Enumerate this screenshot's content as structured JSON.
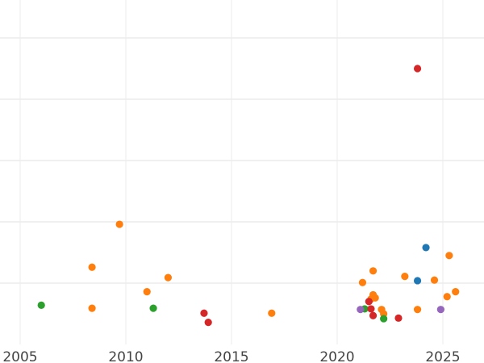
{
  "chart_data": {
    "type": "scatter",
    "title": "",
    "xlabel": "",
    "ylabel": "",
    "xlim": [
      2004.0,
      2027.0
    ],
    "ylim": [
      0,
      5.6
    ],
    "x_ticks": [
      "2005",
      "2010",
      "2015",
      "2020",
      "2025"
    ],
    "x_tick_values": [
      2005,
      2010,
      2015,
      2020,
      2025
    ],
    "y_gridlines": [
      1,
      2,
      3,
      4,
      5
    ],
    "y_tick_labels_shown": false,
    "grid": true,
    "legend": "none",
    "colors": {
      "blue": "#1f77b4",
      "orange": "#ff7f0e",
      "green": "#2ca02c",
      "red": "#d62728",
      "purple": "#9467bd"
    },
    "points": [
      {
        "x": 2023.8,
        "y": 4.5,
        "color": "red"
      },
      {
        "x": 2009.7,
        "y": 1.96,
        "color": "orange"
      },
      {
        "x": 2008.4,
        "y": 1.26,
        "color": "orange"
      },
      {
        "x": 2012.0,
        "y": 1.09,
        "color": "orange"
      },
      {
        "x": 2011.0,
        "y": 0.86,
        "color": "orange"
      },
      {
        "x": 2008.4,
        "y": 0.59,
        "color": "orange"
      },
      {
        "x": 2006.0,
        "y": 0.64,
        "color": "green"
      },
      {
        "x": 2011.3,
        "y": 0.59,
        "color": "green"
      },
      {
        "x": 2013.7,
        "y": 0.51,
        "color": "red"
      },
      {
        "x": 2013.9,
        "y": 0.36,
        "color": "red"
      },
      {
        "x": 2016.9,
        "y": 0.51,
        "color": "orange"
      },
      {
        "x": 2024.2,
        "y": 1.58,
        "color": "blue"
      },
      {
        "x": 2025.3,
        "y": 1.45,
        "color": "orange"
      },
      {
        "x": 2021.7,
        "y": 1.2,
        "color": "orange"
      },
      {
        "x": 2023.2,
        "y": 1.11,
        "color": "orange"
      },
      {
        "x": 2023.8,
        "y": 1.04,
        "color": "blue"
      },
      {
        "x": 2024.6,
        "y": 1.05,
        "color": "orange"
      },
      {
        "x": 2021.2,
        "y": 1.01,
        "color": "orange"
      },
      {
        "x": 2025.6,
        "y": 0.86,
        "color": "orange"
      },
      {
        "x": 2025.2,
        "y": 0.78,
        "color": "orange"
      },
      {
        "x": 2021.7,
        "y": 0.81,
        "color": "orange"
      },
      {
        "x": 2021.8,
        "y": 0.76,
        "color": "orange"
      },
      {
        "x": 2021.6,
        "y": 0.74,
        "color": "orange"
      },
      {
        "x": 2021.5,
        "y": 0.7,
        "color": "red"
      },
      {
        "x": 2021.3,
        "y": 0.58,
        "color": "green"
      },
      {
        "x": 2021.1,
        "y": 0.57,
        "color": "purple"
      },
      {
        "x": 2021.6,
        "y": 0.58,
        "color": "red"
      },
      {
        "x": 2021.7,
        "y": 0.47,
        "color": "red"
      },
      {
        "x": 2022.1,
        "y": 0.57,
        "color": "orange"
      },
      {
        "x": 2022.2,
        "y": 0.5,
        "color": "orange"
      },
      {
        "x": 2022.2,
        "y": 0.42,
        "color": "green"
      },
      {
        "x": 2022.9,
        "y": 0.43,
        "color": "red"
      },
      {
        "x": 2023.8,
        "y": 0.57,
        "color": "orange"
      },
      {
        "x": 2024.9,
        "y": 0.57,
        "color": "purple"
      }
    ]
  }
}
